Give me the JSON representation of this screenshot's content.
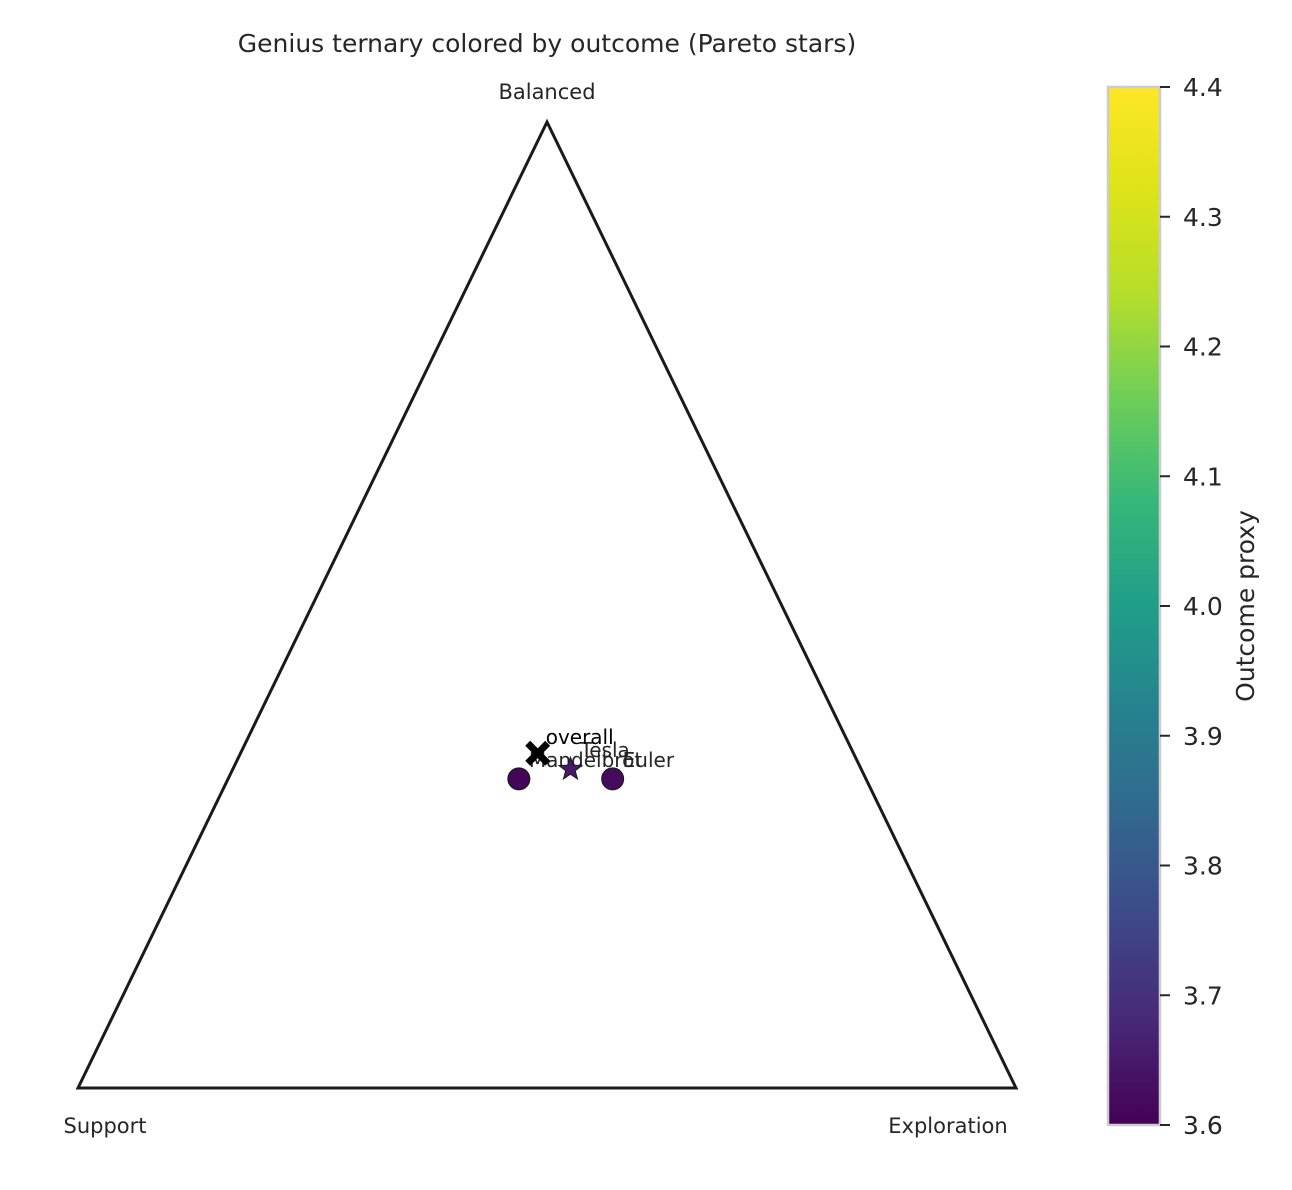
{
  "chart_data": {
    "type": "scatter",
    "subtype": "ternary",
    "title": "Genius ternary colored by outcome (Pareto stars)",
    "vertices": {
      "top": "Balanced",
      "bottom_left": "Support",
      "bottom_right": "Exploration"
    },
    "points": [
      {
        "label": "Mandelbrot",
        "support": 0.37,
        "exploration": 0.31,
        "balanced": 0.32,
        "outcome": 3.61,
        "marker": "circle"
      },
      {
        "label": "Tesla",
        "support": 0.31,
        "exploration": 0.36,
        "balanced": 0.33,
        "outcome": 3.65,
        "marker": "star"
      },
      {
        "label": "Euler",
        "support": 0.27,
        "exploration": 0.41,
        "balanced": 0.32,
        "outcome": 3.62,
        "marker": "circle"
      }
    ],
    "mean_point": {
      "label": "overall",
      "support": 0.34,
      "exploration": 0.32,
      "balanced": 0.35,
      "marker": "x",
      "color": "#000000"
    },
    "colorbar": {
      "label": "Outcome proxy",
      "colormap": "viridis",
      "range": [
        3.6,
        4.4
      ],
      "ticks": [
        "3.6",
        "3.7",
        "3.8",
        "3.9",
        "4.0",
        "4.1",
        "4.2",
        "4.3",
        "4.4"
      ]
    },
    "colors": {
      "triangle_edge": "#1a1a1a",
      "marker_edge": "#1a1a1a",
      "colorbar_border": "#cccccc"
    }
  }
}
